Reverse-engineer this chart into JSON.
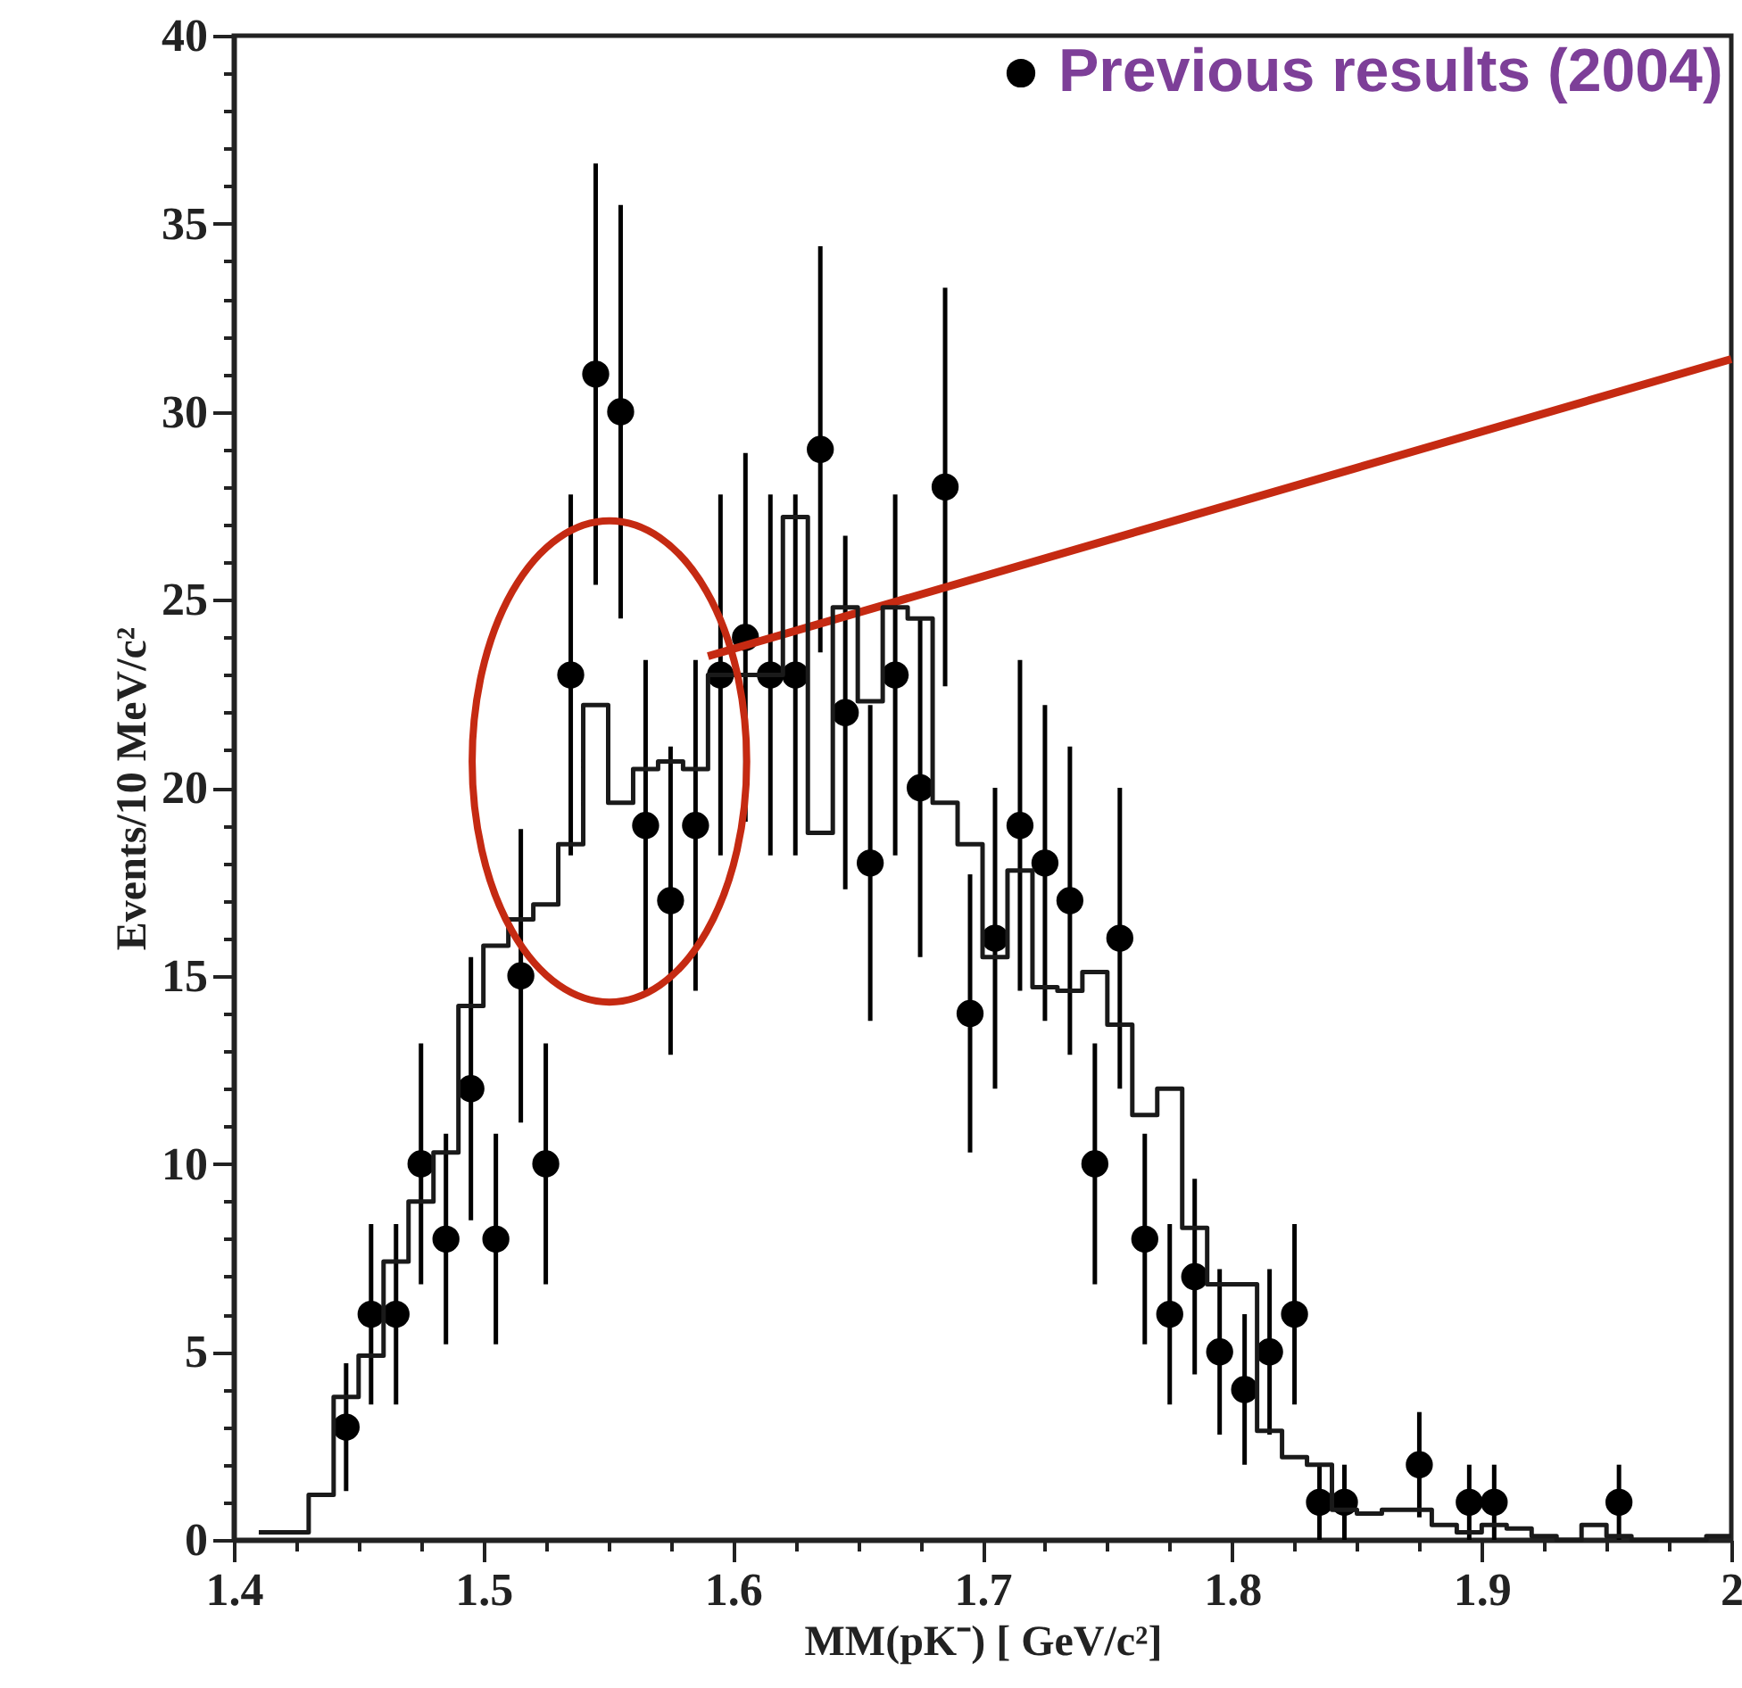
{
  "chart_data": {
    "type": "scatter",
    "xlabel": "MM(pK⁻) [ GeV/c²]",
    "ylabel": "Events/10 MeV/c²",
    "xlim": [
      1.4,
      2.0
    ],
    "ylim": [
      0,
      40
    ],
    "xticks": [
      1.4,
      {
        "value": 1.425,
        "label": null
      },
      {
        "value": 1.45,
        "label": null
      },
      {
        "value": 1.475,
        "label": null
      },
      1.5,
      {
        "value": 1.525,
        "label": null
      },
      {
        "value": 1.55,
        "label": null
      },
      {
        "value": 1.575,
        "label": null
      },
      1.6,
      {
        "value": 1.625,
        "label": null
      },
      {
        "value": 1.65,
        "label": null
      },
      {
        "value": 1.675,
        "label": null
      },
      1.7,
      {
        "value": 1.725,
        "label": null
      },
      {
        "value": 1.75,
        "label": null
      },
      {
        "value": 1.775,
        "label": null
      },
      1.8,
      {
        "value": 1.825,
        "label": null
      },
      {
        "value": 1.85,
        "label": null
      },
      {
        "value": 1.875,
        "label": null
      },
      1.9,
      {
        "value": 1.925,
        "label": null
      },
      {
        "value": 1.95,
        "label": null
      },
      {
        "value": 1.975,
        "label": null
      },
      2
    ],
    "yticks": [
      0,
      {
        "value": 1,
        "label": null
      },
      {
        "value": 2,
        "label": null
      },
      {
        "value": 3,
        "label": null
      },
      {
        "value": 4,
        "label": null
      },
      5,
      {
        "value": 6,
        "label": null
      },
      {
        "value": 7,
        "label": null
      },
      {
        "value": 8,
        "label": null
      },
      {
        "value": 9,
        "label": null
      },
      10,
      {
        "value": 11,
        "label": null
      },
      {
        "value": 12,
        "label": null
      },
      {
        "value": 13,
        "label": null
      },
      {
        "value": 14,
        "label": null
      },
      15,
      {
        "value": 16,
        "label": null
      },
      {
        "value": 17,
        "label": null
      },
      {
        "value": 18,
        "label": null
      },
      {
        "value": 19,
        "label": null
      },
      20,
      {
        "value": 21,
        "label": null
      },
      {
        "value": 22,
        "label": null
      },
      {
        "value": 23,
        "label": null
      },
      {
        "value": 24,
        "label": null
      },
      25,
      {
        "value": 26,
        "label": null
      },
      {
        "value": 27,
        "label": null
      },
      {
        "value": 28,
        "label": null
      },
      {
        "value": 29,
        "label": null
      },
      30,
      {
        "value": 31,
        "label": null
      },
      {
        "value": 32,
        "label": null
      },
      {
        "value": 33,
        "label": null
      },
      {
        "value": 34,
        "label": null
      },
      35,
      {
        "value": 36,
        "label": null
      },
      {
        "value": 37,
        "label": null
      },
      {
        "value": 38,
        "label": null
      },
      {
        "value": 39,
        "label": null
      },
      40
    ],
    "legend": "top right",
    "series": [
      {
        "name": "Previous results (2004)",
        "type": "scatter",
        "marker": "circle",
        "color": "#000000",
        "x": [
          1.445,
          1.455,
          1.465,
          1.475,
          1.485,
          1.495,
          1.505,
          1.515,
          1.525,
          1.535,
          1.545,
          1.555,
          1.565,
          1.575,
          1.585,
          1.595,
          1.605,
          1.615,
          1.625,
          1.635,
          1.645,
          1.655,
          1.665,
          1.675,
          1.685,
          1.695,
          1.705,
          1.715,
          1.725,
          1.735,
          1.745,
          1.755,
          1.765,
          1.775,
          1.785,
          1.795,
          1.805,
          1.815,
          1.825,
          1.835,
          1.845,
          1.875,
          1.895,
          1.905,
          1.955
        ],
        "values": [
          3,
          6,
          6,
          10,
          8,
          12,
          8,
          15,
          10,
          23,
          31,
          30,
          19,
          17,
          19,
          23,
          24,
          23,
          23,
          29,
          22,
          18,
          23,
          20,
          28,
          14,
          16,
          19,
          18,
          17,
          10,
          16,
          8,
          6,
          7,
          5,
          4,
          5,
          6,
          1,
          1,
          2,
          1,
          1,
          1
        ],
        "errors": [
          1.7,
          2.4,
          2.4,
          3.2,
          2.8,
          3.5,
          2.8,
          3.9,
          3.2,
          4.8,
          5.6,
          5.5,
          4.4,
          4.1,
          4.4,
          4.8,
          4.9,
          4.8,
          4.8,
          5.4,
          4.7,
          4.2,
          4.8,
          4.5,
          5.3,
          3.7,
          4,
          4.4,
          4.2,
          4.1,
          3.2,
          4,
          2.8,
          2.4,
          2.6,
          2.2,
          2,
          2.2,
          2.4,
          1,
          1,
          1.4,
          1,
          1,
          1
        ]
      },
      {
        "type": "line",
        "marker": "none",
        "color": "#c52a12",
        "x": [
          1.59,
          2.0
        ],
        "values": [
          23.5,
          31.4
        ]
      },
      {
        "type": "histogram",
        "color": "#1a1a1a",
        "bins": [
          1.41,
          1.42,
          1.43,
          1.44,
          1.45,
          1.46,
          1.47,
          1.48,
          1.49,
          1.5,
          1.51,
          1.52,
          1.53,
          1.54,
          1.55,
          1.56,
          1.57,
          1.58,
          1.59,
          1.6,
          1.61,
          1.62,
          1.63,
          1.64,
          1.65,
          1.66,
          1.67,
          1.68,
          1.69,
          1.7,
          1.71,
          1.72,
          1.73,
          1.74,
          1.75,
          1.76,
          1.77,
          1.78,
          1.79,
          1.8,
          1.81,
          1.82,
          1.83,
          1.84,
          1.85,
          1.86,
          1.87,
          1.88,
          1.89,
          1.9,
          1.91,
          1.92,
          1.93,
          1.94,
          1.95,
          1.96,
          1.97,
          1.98,
          1.99,
          2.0
        ],
        "values": [
          0.2,
          0.2,
          1.2,
          3.8,
          4.9,
          7.4,
          9.0,
          10.3,
          14.2,
          15.8,
          16.5,
          16.9,
          18.5,
          22.2,
          19.6,
          20.5,
          20.7,
          20.5,
          23.0,
          23.0,
          23.0,
          27.2,
          18.8,
          24.8,
          22.3,
          24.8,
          24.5,
          19.6,
          18.5,
          15.5,
          17.8,
          14.7,
          14.6,
          15.1,
          13.7,
          11.3,
          12.0,
          8.3,
          6.8,
          6.8,
          2.9,
          2.2,
          2.0,
          0.8,
          0.7,
          0.8,
          0.8,
          0.4,
          0.2,
          0.4,
          0.3,
          0.1,
          0,
          0.4,
          0.1,
          0,
          0,
          0,
          0.1
        ]
      }
    ]
  }
}
